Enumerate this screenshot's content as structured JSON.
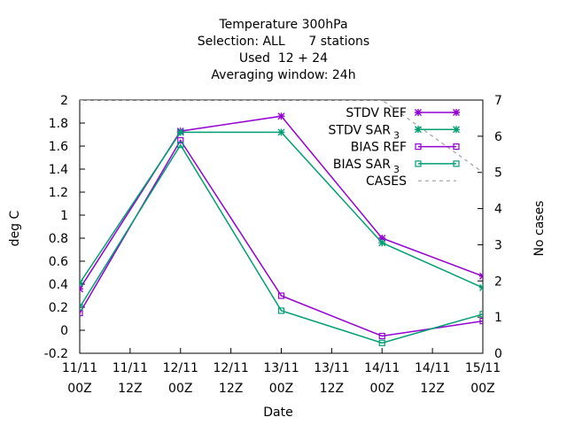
{
  "chart_data": {
    "type": "line",
    "title_lines": [
      "Temperature 300hPa",
      "Selection: ALL      7 stations",
      "Used  12 + 24",
      "Averaging window: 24h"
    ],
    "xlabel": "Date",
    "ylabel": "deg C",
    "y2label": "No cases",
    "x": [
      "11/11 00Z",
      "11/11 12Z",
      "12/11 00Z",
      "12/11 12Z",
      "13/11 00Z",
      "13/11 12Z",
      "14/11 00Z",
      "14/11 12Z",
      "15/11 00Z"
    ],
    "xticks": [
      {
        "top": "11/11",
        "bottom": "00Z"
      },
      {
        "top": "11/11",
        "bottom": "12Z"
      },
      {
        "top": "12/11",
        "bottom": "00Z"
      },
      {
        "top": "12/11",
        "bottom": "12Z"
      },
      {
        "top": "13/11",
        "bottom": "00Z"
      },
      {
        "top": "13/11",
        "bottom": "12Z"
      },
      {
        "top": "14/11",
        "bottom": "00Z"
      },
      {
        "top": "14/11",
        "bottom": "12Z"
      },
      {
        "top": "15/11",
        "bottom": "00Z"
      }
    ],
    "ylim": [
      -0.2,
      2
    ],
    "yticks": [
      "-0.2",
      "0",
      "0.2",
      "0.4",
      "0.6",
      "0.8",
      "1",
      "1.2",
      "1.4",
      "1.6",
      "1.8",
      "2"
    ],
    "y2lim": [
      0,
      7
    ],
    "y2ticks": [
      "0",
      "1",
      "2",
      "3",
      "4",
      "5",
      "6",
      "7"
    ],
    "grid": false,
    "legend_position": "top-right",
    "series": [
      {
        "name": "STDV REF",
        "sub": "",
        "color": "#9400d3",
        "marker": "star",
        "axis": "y",
        "points": [
          [
            "11/11 00Z",
            0.36
          ],
          [
            "12/11 00Z",
            1.73
          ],
          [
            "13/11 00Z",
            1.86
          ],
          [
            "14/11 00Z",
            0.8
          ],
          [
            "15/11 00Z",
            0.47
          ]
        ]
      },
      {
        "name": "STDV SAR",
        "sub": "3",
        "color": "#009e73",
        "marker": "star",
        "axis": "y",
        "points": [
          [
            "11/11 00Z",
            0.41
          ],
          [
            "12/11 00Z",
            1.72
          ],
          [
            "13/11 00Z",
            1.72
          ],
          [
            "14/11 00Z",
            0.76
          ],
          [
            "15/11 00Z",
            0.37
          ]
        ]
      },
      {
        "name": "BIAS REF",
        "sub": "",
        "color": "#9400d3",
        "marker": "square",
        "axis": "y",
        "points": [
          [
            "11/11 00Z",
            0.15
          ],
          [
            "12/11 00Z",
            1.65
          ],
          [
            "13/11 00Z",
            0.3
          ],
          [
            "14/11 00Z",
            -0.05
          ],
          [
            "15/11 00Z",
            0.08
          ]
        ]
      },
      {
        "name": "BIAS SAR",
        "sub": "3",
        "color": "#009e73",
        "marker": "square",
        "axis": "y",
        "points": [
          [
            "11/11 00Z",
            0.2
          ],
          [
            "12/11 00Z",
            1.61
          ],
          [
            "13/11 00Z",
            0.17
          ],
          [
            "14/11 00Z",
            -0.11
          ],
          [
            "15/11 00Z",
            0.14
          ]
        ]
      },
      {
        "name": "CASES",
        "sub": "",
        "color": "#a0a0a0",
        "marker": "none",
        "dashed": true,
        "axis": "y2",
        "points": [
          [
            "11/11 00Z",
            7
          ],
          [
            "12/11 00Z",
            7
          ],
          [
            "13/11 00Z",
            7
          ],
          [
            "14/11 00Z",
            7
          ],
          [
            "15/11 00Z",
            5
          ]
        ]
      }
    ]
  }
}
